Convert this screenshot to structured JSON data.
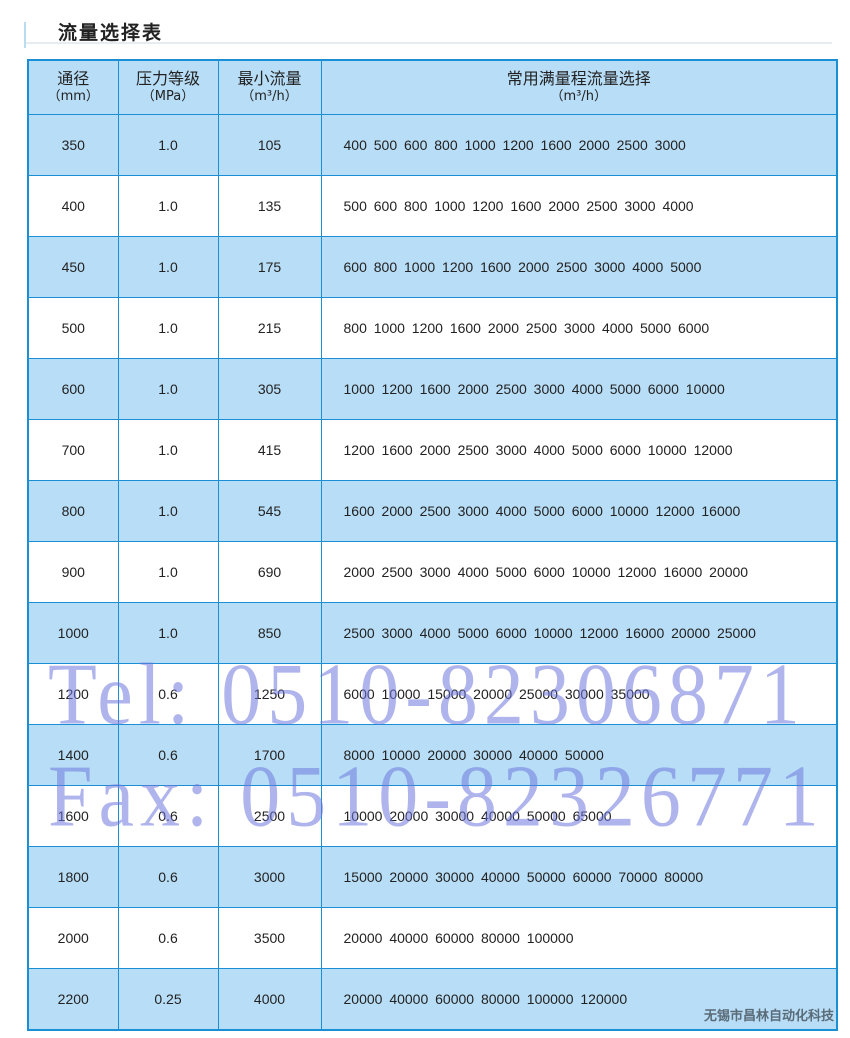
{
  "title": "流量选择表",
  "headers": [
    {
      "label": "通径",
      "unit": "（mm）"
    },
    {
      "label": "压力等级",
      "unit": "（MPa）"
    },
    {
      "label": "最小流量",
      "unit": "（m³/h）"
    },
    {
      "label": "常用满量程流量选择",
      "unit": "（m³/h）"
    }
  ],
  "rows": [
    {
      "dn": "350",
      "pressure": "1.0",
      "min_flow": "105",
      "flows": "400 500 600 800 1000 1200 1600 2000 2500 3000"
    },
    {
      "dn": "400",
      "pressure": "1.0",
      "min_flow": "135",
      "flows": "500 600 800 1000 1200 1600 2000 2500 3000 4000"
    },
    {
      "dn": "450",
      "pressure": "1.0",
      "min_flow": "175",
      "flows": "600 800 1000 1200 1600 2000 2500 3000 4000 5000"
    },
    {
      "dn": "500",
      "pressure": "1.0",
      "min_flow": "215",
      "flows": "800 1000 1200 1600 2000 2500 3000 4000 5000 6000"
    },
    {
      "dn": "600",
      "pressure": "1.0",
      "min_flow": "305",
      "flows": "1000 1200 1600 2000 2500 3000 4000 5000 6000 10000"
    },
    {
      "dn": "700",
      "pressure": "1.0",
      "min_flow": "415",
      "flows": "1200 1600 2000 2500 3000 4000 5000 6000 10000 12000"
    },
    {
      "dn": "800",
      "pressure": "1.0",
      "min_flow": "545",
      "flows": "1600 2000 2500 3000 4000 5000 6000 10000 12000 16000"
    },
    {
      "dn": "900",
      "pressure": "1.0",
      "min_flow": "690",
      "flows": "2000 2500 3000 4000 5000 6000 10000 12000 16000 20000"
    },
    {
      "dn": "1000",
      "pressure": "1.0",
      "min_flow": "850",
      "flows": "2500 3000 4000 5000 6000 10000 12000 16000 20000 25000"
    },
    {
      "dn": "1200",
      "pressure": "0.6",
      "min_flow": "1250",
      "flows": "6000 10000 15000 20000 25000 30000 35000"
    },
    {
      "dn": "1400",
      "pressure": "0.6",
      "min_flow": "1700",
      "flows": "8000 10000 20000 30000 40000 50000"
    },
    {
      "dn": "1600",
      "pressure": "0.6",
      "min_flow": "2500",
      "flows": "10000 20000 30000 40000 50000 65000"
    },
    {
      "dn": "1800",
      "pressure": "0.6",
      "min_flow": "3000",
      "flows": "15000 20000 30000 40000 50000 60000 70000 80000"
    },
    {
      "dn": "2000",
      "pressure": "0.6",
      "min_flow": "3500",
      "flows": "20000 40000 60000 80000 100000"
    },
    {
      "dn": "2200",
      "pressure": "0.25",
      "min_flow": "4000",
      "flows": "20000 40000 60000 80000 100000 120000"
    }
  ],
  "watermark": {
    "tel": "Tel: 0510-82306871",
    "fax": "Fax: 0510-82326771"
  },
  "company": "无锡市昌林自动化科技",
  "colors": {
    "row_blue": "#b8ddf6",
    "border": "#1a8fd3",
    "watermark": "#6e78dc"
  }
}
